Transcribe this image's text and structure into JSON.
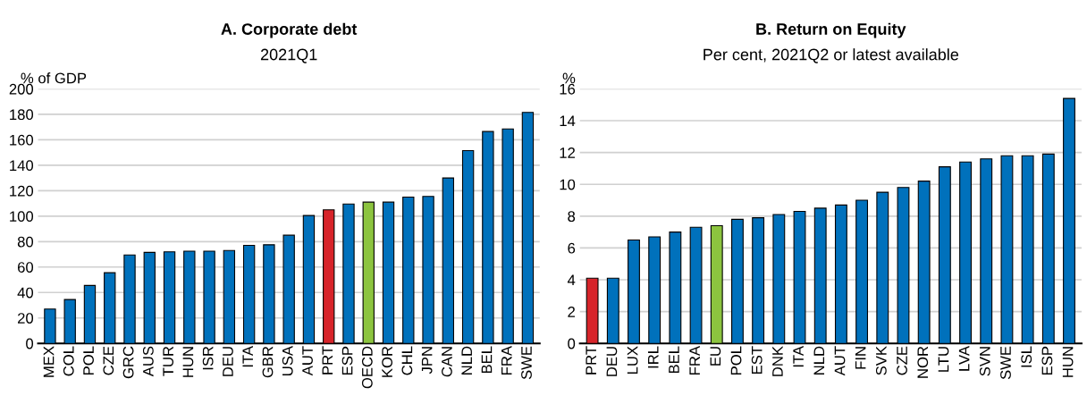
{
  "chart_data": [
    {
      "type": "bar",
      "title": "A. Corporate debt",
      "subtitle": "2021Q1",
      "ylabel": "% of GDP",
      "categories": [
        "MEX",
        "COL",
        "POL",
        "CZE",
        "GRC",
        "AUS",
        "TUR",
        "HUN",
        "ISR",
        "DEU",
        "ITA",
        "GBR",
        "USA",
        "AUT",
        "PRT",
        "ESP",
        "OECD",
        "KOR",
        "CHL",
        "JPN",
        "CAN",
        "NLD",
        "BEL",
        "FRA",
        "SWE"
      ],
      "values": [
        27,
        34.5,
        45.5,
        55.5,
        69.5,
        71.5,
        72,
        72.5,
        72.5,
        73,
        77,
        77.5,
        85,
        100.5,
        105,
        109.5,
        111,
        111,
        115,
        115.5,
        130,
        151.5,
        166.5,
        168.5,
        181.5
      ],
      "colors": [
        "#0071bc",
        "#0071bc",
        "#0071bc",
        "#0071bc",
        "#0071bc",
        "#0071bc",
        "#0071bc",
        "#0071bc",
        "#0071bc",
        "#0071bc",
        "#0071bc",
        "#0071bc",
        "#0071bc",
        "#0071bc",
        "#d7242a",
        "#0071bc",
        "#8cc43f",
        "#0071bc",
        "#0071bc",
        "#0071bc",
        "#0071bc",
        "#0071bc",
        "#0071bc",
        "#0071bc",
        "#0071bc"
      ],
      "ylim": [
        0,
        200
      ],
      "yticks": [
        0,
        20,
        40,
        60,
        80,
        100,
        120,
        140,
        160,
        180,
        200
      ],
      "grid": "y",
      "legend": false
    },
    {
      "type": "bar",
      "title": "B. Return on Equity",
      "subtitle": "Per cent, 2021Q2 or latest available",
      "ylabel": "%",
      "categories": [
        "PRT",
        "DEU",
        "LUX",
        "IRL",
        "BEL",
        "FRA",
        "EU",
        "POL",
        "EST",
        "DNK",
        "ITA",
        "NLD",
        "AUT",
        "FIN",
        "SVK",
        "CZE",
        "NOR",
        "LTU",
        "LVA",
        "SVN",
        "SWE",
        "ISL",
        "ESP",
        "HUN"
      ],
      "values": [
        4.1,
        4.1,
        6.5,
        6.7,
        7.0,
        7.3,
        7.4,
        7.8,
        7.9,
        8.1,
        8.3,
        8.5,
        8.7,
        9.0,
        9.5,
        9.8,
        10.2,
        11.1,
        11.4,
        11.6,
        11.8,
        11.8,
        11.9,
        15.4
      ],
      "colors": [
        "#d7242a",
        "#0071bc",
        "#0071bc",
        "#0071bc",
        "#0071bc",
        "#0071bc",
        "#8cc43f",
        "#0071bc",
        "#0071bc",
        "#0071bc",
        "#0071bc",
        "#0071bc",
        "#0071bc",
        "#0071bc",
        "#0071bc",
        "#0071bc",
        "#0071bc",
        "#0071bc",
        "#0071bc",
        "#0071bc",
        "#0071bc",
        "#0071bc",
        "#0071bc",
        "#0071bc"
      ],
      "ylim": [
        0,
        16
      ],
      "yticks": [
        0,
        2,
        4,
        6,
        8,
        10,
        12,
        14,
        16
      ],
      "grid": "y",
      "legend": false
    }
  ]
}
